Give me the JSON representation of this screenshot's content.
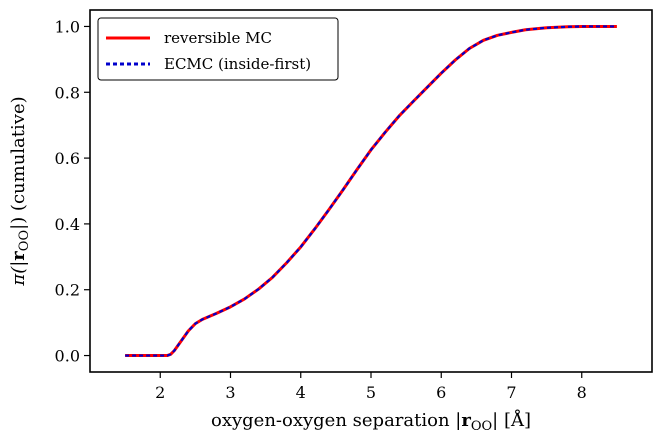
{
  "chart_data": {
    "type": "line",
    "xlabel_main": "oxygen-oxygen separation |",
    "xlabel_bold": "r",
    "xlabel_sub": "OO",
    "xlabel_tail": "| [Å]",
    "ylabel_pre": "π(|",
    "ylabel_bold": "r",
    "ylabel_sub": "OO",
    "ylabel_post": "|) (cumulative)",
    "xlim": [
      1.0,
      9.0
    ],
    "ylim": [
      -0.05,
      1.05
    ],
    "xticks": [
      2,
      3,
      4,
      5,
      6,
      7,
      8
    ],
    "xtick_labels": [
      "2",
      "3",
      "4",
      "5",
      "6",
      "7",
      "8"
    ],
    "yticks": [
      0.0,
      0.2,
      0.4,
      0.6,
      0.8,
      1.0
    ],
    "ytick_labels": [
      "0.0",
      "0.2",
      "0.4",
      "0.6",
      "0.8",
      "1.0"
    ],
    "grid": false,
    "legend_position": "top-left",
    "series": [
      {
        "name": "reversible MC",
        "color": "#ff0000",
        "style": "solid",
        "x": [
          1.5,
          2.0,
          2.1,
          2.15,
          2.2,
          2.3,
          2.4,
          2.5,
          2.6,
          2.8,
          3.0,
          3.2,
          3.4,
          3.6,
          3.8,
          4.0,
          4.2,
          4.4,
          4.6,
          4.8,
          5.0,
          5.2,
          5.4,
          5.6,
          5.8,
          6.0,
          6.2,
          6.4,
          6.6,
          6.8,
          7.0,
          7.2,
          7.5,
          7.8,
          8.0,
          8.5
        ],
        "y": [
          0.0,
          0.0,
          0.0,
          0.004,
          0.015,
          0.045,
          0.075,
          0.097,
          0.11,
          0.128,
          0.148,
          0.172,
          0.202,
          0.238,
          0.282,
          0.33,
          0.385,
          0.443,
          0.503,
          0.565,
          0.625,
          0.678,
          0.728,
          0.772,
          0.815,
          0.858,
          0.898,
          0.933,
          0.958,
          0.973,
          0.982,
          0.99,
          0.996,
          0.999,
          1.0,
          1.0
        ]
      },
      {
        "name": "ECMC (inside-first)",
        "color": "#0000cc",
        "style": "dashed",
        "x": [
          1.5,
          2.0,
          2.1,
          2.15,
          2.2,
          2.3,
          2.4,
          2.5,
          2.6,
          2.8,
          3.0,
          3.2,
          3.4,
          3.6,
          3.8,
          4.0,
          4.2,
          4.4,
          4.6,
          4.8,
          5.0,
          5.2,
          5.4,
          5.6,
          5.8,
          6.0,
          6.2,
          6.4,
          6.6,
          6.8,
          7.0,
          7.2,
          7.5,
          7.8,
          8.0,
          8.5
        ],
        "y": [
          0.0,
          0.0,
          0.0,
          0.004,
          0.015,
          0.045,
          0.075,
          0.097,
          0.11,
          0.128,
          0.148,
          0.172,
          0.202,
          0.238,
          0.282,
          0.33,
          0.385,
          0.443,
          0.503,
          0.565,
          0.625,
          0.678,
          0.728,
          0.772,
          0.815,
          0.858,
          0.898,
          0.933,
          0.958,
          0.973,
          0.982,
          0.99,
          0.996,
          0.999,
          1.0,
          1.0
        ]
      }
    ]
  }
}
